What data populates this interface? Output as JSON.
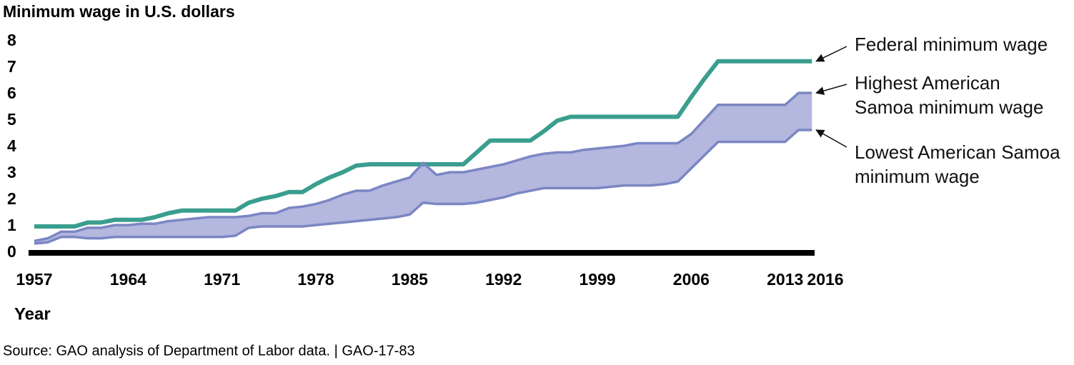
{
  "chart_data": {
    "type": "line",
    "title": "Minimum wage in U.S. dollars",
    "x_label": "Year",
    "source": "Source: GAO analysis of Department of Labor data.  |  GAO-17-83",
    "x": [
      1957,
      1958,
      1959,
      1960,
      1961,
      1962,
      1963,
      1964,
      1965,
      1966,
      1967,
      1968,
      1969,
      1970,
      1971,
      1972,
      1973,
      1974,
      1975,
      1976,
      1977,
      1978,
      1979,
      1980,
      1981,
      1982,
      1983,
      1984,
      1985,
      1986,
      1987,
      1988,
      1989,
      1990,
      1991,
      1992,
      1993,
      1994,
      1995,
      1996,
      1997,
      1998,
      1999,
      2000,
      2001,
      2002,
      2003,
      2004,
      2005,
      2006,
      2007,
      2008,
      2009,
      2010,
      2011,
      2012,
      2013,
      2014,
      2015
    ],
    "series": [
      {
        "name": "Federal minimum wage",
        "color": "#3a9e8e",
        "values": [
          1.0,
          1.0,
          1.0,
          1.0,
          1.15,
          1.15,
          1.25,
          1.25,
          1.25,
          1.35,
          1.5,
          1.6,
          1.6,
          1.6,
          1.6,
          1.6,
          1.9,
          2.05,
          2.15,
          2.3,
          2.3,
          2.6,
          2.85,
          3.05,
          3.3,
          3.35,
          3.35,
          3.35,
          3.35,
          3.35,
          3.35,
          3.35,
          3.35,
          3.8,
          4.25,
          4.25,
          4.25,
          4.25,
          4.6,
          5.0,
          5.15,
          5.15,
          5.15,
          5.15,
          5.15,
          5.15,
          5.15,
          5.15,
          5.15,
          5.9,
          6.6,
          7.25,
          7.25,
          7.25,
          7.25,
          7.25,
          7.25,
          7.25,
          7.25
        ]
      },
      {
        "name": "Highest American Samoa minimum wage",
        "color": "#7b86c3",
        "values": [
          0.45,
          0.55,
          0.8,
          0.8,
          0.95,
          0.95,
          1.05,
          1.05,
          1.1,
          1.1,
          1.2,
          1.25,
          1.3,
          1.35,
          1.35,
          1.35,
          1.4,
          1.5,
          1.5,
          1.7,
          1.75,
          1.85,
          2.0,
          2.2,
          2.35,
          2.35,
          2.55,
          2.7,
          2.85,
          3.4,
          2.95,
          3.05,
          3.05,
          3.15,
          3.25,
          3.35,
          3.5,
          3.65,
          3.75,
          3.8,
          3.8,
          3.9,
          3.95,
          4.0,
          4.05,
          4.15,
          4.15,
          4.15,
          4.15,
          4.5,
          5.05,
          5.6,
          5.6,
          5.6,
          5.6,
          5.6,
          5.6,
          6.05,
          6.05
        ]
      },
      {
        "name": "Lowest American Samoa minimum wage",
        "color": "#7b86c3",
        "values": [
          0.35,
          0.4,
          0.6,
          0.6,
          0.55,
          0.55,
          0.6,
          0.6,
          0.6,
          0.6,
          0.6,
          0.6,
          0.6,
          0.6,
          0.6,
          0.65,
          0.95,
          1.0,
          1.0,
          1.0,
          1.0,
          1.05,
          1.1,
          1.15,
          1.2,
          1.25,
          1.3,
          1.35,
          1.45,
          1.9,
          1.85,
          1.85,
          1.85,
          1.9,
          2.0,
          2.1,
          2.25,
          2.35,
          2.45,
          2.45,
          2.45,
          2.45,
          2.45,
          2.5,
          2.55,
          2.55,
          2.55,
          2.6,
          2.7,
          3.2,
          3.7,
          4.2,
          4.2,
          4.2,
          4.2,
          4.2,
          4.2,
          4.65,
          4.65
        ]
      }
    ],
    "fill_between": [
      1,
      2
    ],
    "fill_color": "#b4b7de",
    "xlim": [
      1957,
      2016
    ],
    "xticks": [
      1957,
      1964,
      1971,
      1978,
      1985,
      1992,
      1999,
      2006,
      2013,
      2016
    ],
    "ylim": [
      0,
      8
    ],
    "yticks": [
      0,
      1,
      2,
      3,
      4,
      5,
      6,
      7,
      8
    ]
  }
}
